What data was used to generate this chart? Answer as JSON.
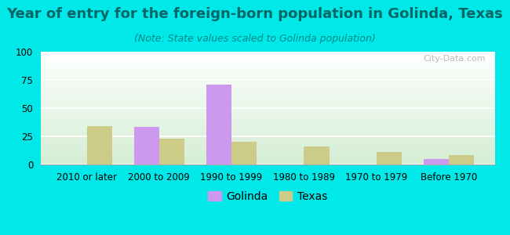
{
  "title": "Year of entry for the foreign-born population in Golinda, Texas",
  "subtitle": "(Note: State values scaled to Golinda population)",
  "categories": [
    "2010 or later",
    "2000 to 2009",
    "1990 to 1999",
    "1980 to 1989",
    "1970 to 1979",
    "Before 1970"
  ],
  "golinda_values": [
    0,
    33,
    71,
    0,
    0,
    5
  ],
  "texas_values": [
    34,
    23,
    20,
    16,
    11,
    8
  ],
  "golinda_color": "#cc99ee",
  "texas_color": "#cccc88",
  "bar_width": 0.35,
  "ylim": [
    0,
    100
  ],
  "yticks": [
    0,
    25,
    50,
    75,
    100
  ],
  "background_color": "#00e8e8",
  "title_color": "#006666",
  "subtitle_color": "#008888",
  "title_fontsize": 13,
  "subtitle_fontsize": 9,
  "tick_fontsize": 8.5,
  "legend_fontsize": 10,
  "watermark": "City-Data.com"
}
